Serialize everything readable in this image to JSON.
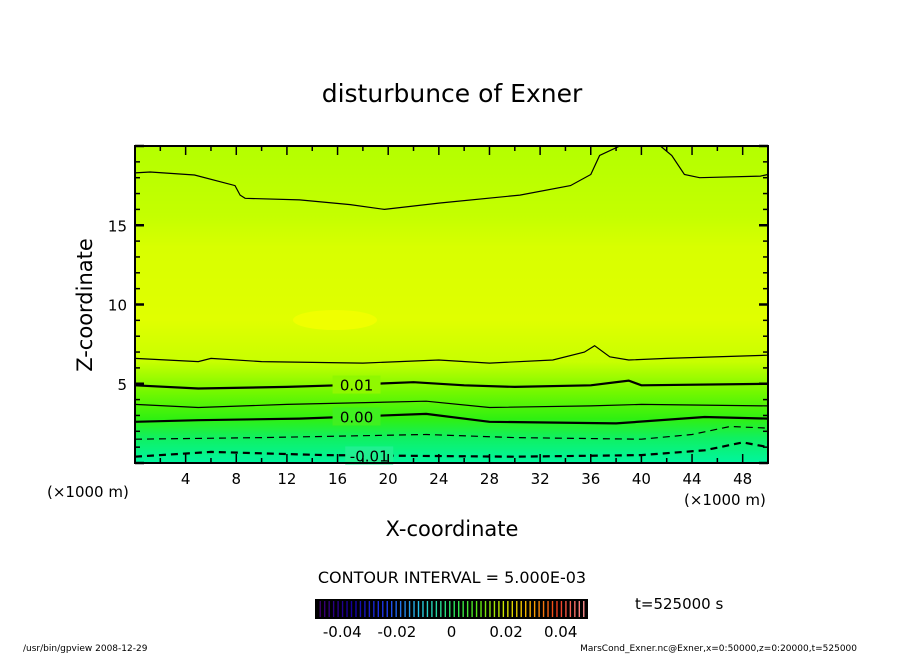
{
  "chart_data": {
    "type": "contour",
    "title": "disturbunce of Exner",
    "xlabel": "X-coordinate",
    "ylabel": "Z-coordinate",
    "x_unit_left": "(×1000 m)",
    "x_unit_right": "(×1000 m)",
    "xlim": [
      0,
      50
    ],
    "ylim": [
      0,
      20
    ],
    "xticks": [
      4,
      8,
      12,
      16,
      20,
      24,
      28,
      32,
      36,
      40,
      44,
      48
    ],
    "yticks": [
      5,
      10,
      15
    ],
    "contour_interval_text": "CONTOUR INTERVAL = 5.000E-03",
    "time_text": "t=525000 s",
    "colorbar": {
      "range": [
        -0.05,
        0.05
      ],
      "ticks": [
        "-0.04",
        "-0.02",
        "0",
        "0.02",
        "0.04"
      ],
      "tick_values": [
        -0.04,
        -0.02,
        0,
        0.02,
        0.04
      ]
    },
    "contours": [
      {
        "level": 0.02,
        "label": "",
        "dashed": false,
        "bold": false,
        "points": [
          [
            0,
            18.3
          ],
          [
            1.2,
            18.36
          ],
          [
            4.7,
            18.17
          ],
          [
            7.9,
            17.5
          ],
          [
            8.3,
            16.9
          ],
          [
            8.7,
            16.7
          ],
          [
            13,
            16.6
          ],
          [
            17,
            16.3
          ],
          [
            19.7,
            16.0
          ],
          [
            24,
            16.4
          ],
          [
            30.4,
            16.9
          ],
          [
            34.4,
            17.5
          ],
          [
            36,
            18.2
          ],
          [
            36.7,
            19.4
          ],
          [
            38.3,
            20
          ],
          [
            41.5,
            20
          ],
          [
            42.4,
            19.4
          ],
          [
            43.4,
            18.2
          ],
          [
            44.6,
            18.0
          ],
          [
            49.4,
            18.1
          ],
          [
            50,
            18.2
          ]
        ]
      },
      {
        "level": 0.015,
        "label": "",
        "dashed": false,
        "bold": false,
        "points": [
          [
            0,
            6.6
          ],
          [
            5,
            6.4
          ],
          [
            6,
            6.6
          ],
          [
            10,
            6.4
          ],
          [
            18,
            6.3
          ],
          [
            24,
            6.5
          ],
          [
            28,
            6.3
          ],
          [
            33,
            6.5
          ],
          [
            35.5,
            7.0
          ],
          [
            36.3,
            7.4
          ],
          [
            37.5,
            6.7
          ],
          [
            39,
            6.5
          ],
          [
            42,
            6.6
          ],
          [
            50,
            6.8
          ]
        ]
      },
      {
        "level": 0.01,
        "label": "0.01",
        "label_x": 17.5,
        "dashed": false,
        "bold": true,
        "points": [
          [
            0,
            4.9
          ],
          [
            5,
            4.7
          ],
          [
            12,
            4.8
          ],
          [
            16,
            4.9
          ],
          [
            22,
            5.1
          ],
          [
            26,
            4.9
          ],
          [
            30,
            4.8
          ],
          [
            36,
            4.9
          ],
          [
            39,
            5.2
          ],
          [
            40,
            4.9
          ],
          [
            50,
            5.0
          ]
        ]
      },
      {
        "level": 0.005,
        "label": "",
        "dashed": false,
        "bold": false,
        "points": [
          [
            0,
            3.7
          ],
          [
            5,
            3.5
          ],
          [
            12,
            3.7
          ],
          [
            23,
            3.9
          ],
          [
            28,
            3.5
          ],
          [
            36,
            3.6
          ],
          [
            40,
            3.7
          ],
          [
            50,
            3.6
          ]
        ]
      },
      {
        "level": 0.0,
        "label": "0.00",
        "label_x": 17.5,
        "dashed": false,
        "bold": true,
        "points": [
          [
            0,
            2.6
          ],
          [
            5,
            2.7
          ],
          [
            13,
            2.8
          ],
          [
            23,
            3.1
          ],
          [
            28,
            2.6
          ],
          [
            38,
            2.5
          ],
          [
            45,
            2.9
          ],
          [
            50,
            2.8
          ]
        ]
      },
      {
        "level": -0.005,
        "label": "",
        "dashed": true,
        "bold": false,
        "points": [
          [
            0,
            1.5
          ],
          [
            10,
            1.6
          ],
          [
            23,
            1.8
          ],
          [
            30,
            1.6
          ],
          [
            40,
            1.5
          ],
          [
            44,
            1.8
          ],
          [
            47,
            2.3
          ],
          [
            50,
            2.2
          ]
        ]
      },
      {
        "level": -0.01,
        "label": "-0.01",
        "label_x": 18.5,
        "dashed": true,
        "bold": true,
        "points": [
          [
            0,
            0.4
          ],
          [
            6,
            0.7
          ],
          [
            15,
            0.5
          ],
          [
            30,
            0.4
          ],
          [
            40,
            0.5
          ],
          [
            45,
            0.8
          ],
          [
            48,
            1.3
          ],
          [
            50,
            1.0
          ]
        ]
      }
    ],
    "fill_colors": {
      "low": "#00f0a0",
      "mid": "#40f000",
      "high": "#e4ff00",
      "top": "#b8ff00"
    }
  },
  "footer": {
    "program": "/usr/bin/gpview   2008-12-29",
    "source": "MarsCond_Exner.nc@Exner,x=0:50000,z=0:20000,t=525000"
  }
}
